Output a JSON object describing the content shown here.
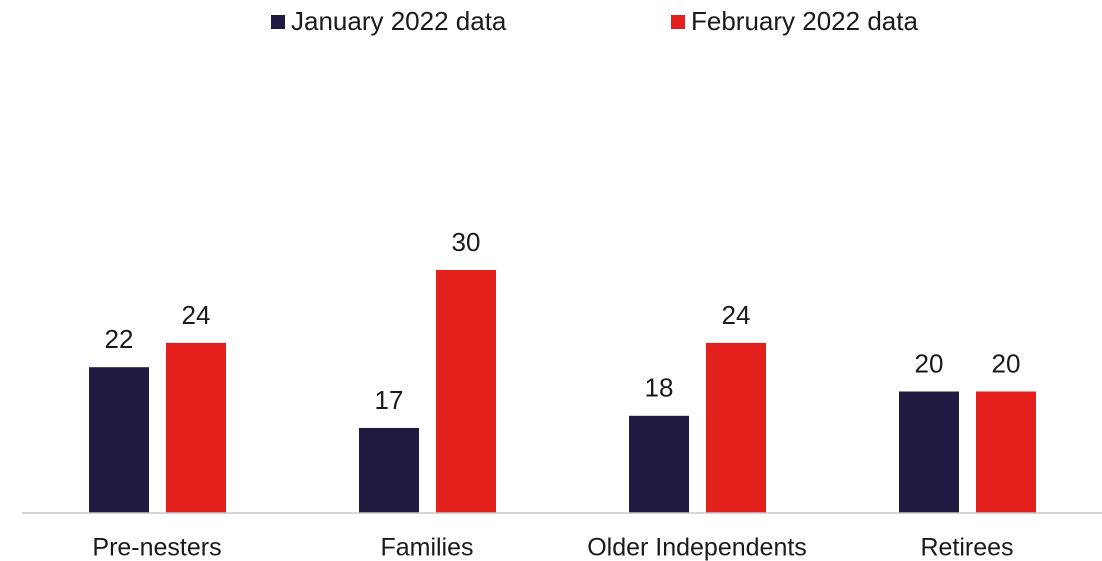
{
  "chart_data": {
    "type": "bar",
    "categories": [
      "Pre-nesters",
      "Families",
      "Older Independents",
      "Retirees"
    ],
    "series": [
      {
        "name": "January 2022 data",
        "color": "#1f1a40",
        "values": [
          22,
          17,
          18,
          20
        ]
      },
      {
        "name": "February 2022 data",
        "color": "#e3201b",
        "values": [
          24,
          30,
          24,
          20
        ]
      }
    ],
    "ylim": [
      10,
      40
    ],
    "legend": "top"
  }
}
